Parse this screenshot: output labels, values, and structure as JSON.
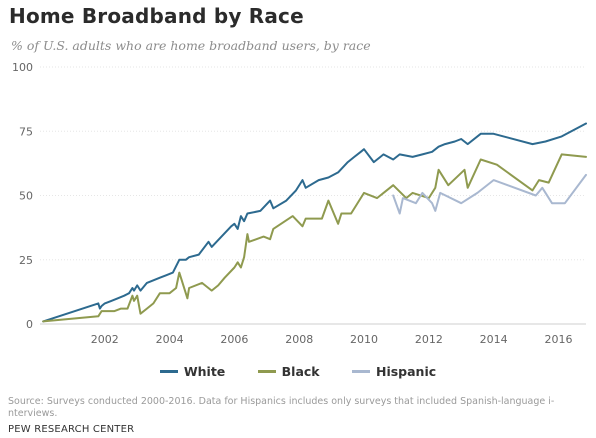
{
  "title": "Home Broadband by Race",
  "subtitle": "% of U.S. adults who are home broadband users, by race",
  "source": "Source: Surveys conducted 2000-2016. Data for Hispanics includes only surveys that included Spanish-language i-nterviews.",
  "org": "PEW RESEARCH CENTER",
  "chart_data": {
    "type": "line",
    "title": "Home Broadband by Race",
    "xlabel": "",
    "ylabel": "",
    "xlim": [
      2000.0,
      2016.85
    ],
    "ylim": [
      0,
      100
    ],
    "x_ticks": [
      2002,
      2004,
      2006,
      2008,
      2010,
      2012,
      2014,
      2016
    ],
    "y_ticks": [
      0,
      25,
      50,
      75,
      100
    ],
    "grid": "horizontal",
    "legend_position": "bottom",
    "series": [
      {
        "name": "White",
        "color": "#2d6a8f",
        "points": [
          [
            2000.1,
            1
          ],
          [
            2001.8,
            8
          ],
          [
            2001.85,
            6
          ],
          [
            2001.9,
            7
          ],
          [
            2002.0,
            8
          ],
          [
            2002.2,
            9
          ],
          [
            2002.4,
            10
          ],
          [
            2002.6,
            11
          ],
          [
            2002.75,
            12
          ],
          [
            2002.85,
            14
          ],
          [
            2002.9,
            13
          ],
          [
            2003.0,
            15
          ],
          [
            2003.1,
            13
          ],
          [
            2003.3,
            16
          ],
          [
            2003.5,
            17
          ],
          [
            2003.7,
            18
          ],
          [
            2003.9,
            19
          ],
          [
            2004.1,
            20
          ],
          [
            2004.3,
            25
          ],
          [
            2004.5,
            25
          ],
          [
            2004.6,
            26
          ],
          [
            2004.9,
            27
          ],
          [
            2005.2,
            32
          ],
          [
            2005.3,
            30
          ],
          [
            2005.6,
            34
          ],
          [
            2005.9,
            38
          ],
          [
            2006.0,
            39
          ],
          [
            2006.1,
            37
          ],
          [
            2006.2,
            42
          ],
          [
            2006.3,
            40
          ],
          [
            2006.4,
            43
          ],
          [
            2006.8,
            44
          ],
          [
            2007.1,
            48
          ],
          [
            2007.2,
            45
          ],
          [
            2007.6,
            48
          ],
          [
            2007.9,
            52
          ],
          [
            2008.1,
            56
          ],
          [
            2008.2,
            53
          ],
          [
            2008.6,
            56
          ],
          [
            2008.9,
            57
          ],
          [
            2009.2,
            59
          ],
          [
            2009.5,
            63
          ],
          [
            2009.7,
            65
          ],
          [
            2009.9,
            67
          ],
          [
            2010.0,
            68
          ],
          [
            2010.3,
            63
          ],
          [
            2010.6,
            66
          ],
          [
            2010.9,
            64
          ],
          [
            2011.1,
            66
          ],
          [
            2011.5,
            65
          ],
          [
            2011.8,
            66
          ],
          [
            2012.1,
            67
          ],
          [
            2012.3,
            69
          ],
          [
            2012.5,
            70
          ],
          [
            2012.8,
            71
          ],
          [
            2013.0,
            72
          ],
          [
            2013.2,
            70
          ],
          [
            2013.6,
            74
          ],
          [
            2014.0,
            74
          ],
          [
            2015.2,
            70
          ],
          [
            2015.6,
            71
          ],
          [
            2016.1,
            73
          ],
          [
            2016.85,
            78
          ]
        ]
      },
      {
        "name": "Black",
        "color": "#8f9a4f",
        "points": [
          [
            2000.1,
            1
          ],
          [
            2001.8,
            3
          ],
          [
            2001.9,
            5
          ],
          [
            2002.3,
            5
          ],
          [
            2002.5,
            6
          ],
          [
            2002.7,
            6
          ],
          [
            2002.85,
            11
          ],
          [
            2002.9,
            9
          ],
          [
            2003.0,
            11
          ],
          [
            2003.1,
            4
          ],
          [
            2003.3,
            6
          ],
          [
            2003.5,
            8
          ],
          [
            2003.7,
            12
          ],
          [
            2004.0,
            12
          ],
          [
            2004.2,
            14
          ],
          [
            2004.3,
            20
          ],
          [
            2004.55,
            10
          ],
          [
            2004.6,
            14
          ],
          [
            2005.0,
            16
          ],
          [
            2005.3,
            13
          ],
          [
            2005.5,
            15
          ],
          [
            2005.7,
            18
          ],
          [
            2006.0,
            22
          ],
          [
            2006.1,
            24
          ],
          [
            2006.2,
            22
          ],
          [
            2006.3,
            26
          ],
          [
            2006.4,
            35
          ],
          [
            2006.45,
            32
          ],
          [
            2006.9,
            34
          ],
          [
            2007.1,
            33
          ],
          [
            2007.2,
            37
          ],
          [
            2007.8,
            42
          ],
          [
            2008.1,
            38
          ],
          [
            2008.2,
            41
          ],
          [
            2008.7,
            41
          ],
          [
            2008.9,
            48
          ],
          [
            2009.2,
            39
          ],
          [
            2009.3,
            43
          ],
          [
            2009.6,
            43
          ],
          [
            2010.0,
            51
          ],
          [
            2010.4,
            49
          ],
          [
            2010.9,
            54
          ],
          [
            2011.3,
            49
          ],
          [
            2011.5,
            51
          ],
          [
            2012.0,
            49
          ],
          [
            2012.2,
            53
          ],
          [
            2012.3,
            60
          ],
          [
            2012.6,
            54
          ],
          [
            2013.1,
            60
          ],
          [
            2013.2,
            53
          ],
          [
            2013.6,
            64
          ],
          [
            2014.1,
            62
          ],
          [
            2015.2,
            52
          ],
          [
            2015.4,
            56
          ],
          [
            2015.7,
            55
          ],
          [
            2016.1,
            66
          ],
          [
            2016.85,
            65
          ]
        ]
      },
      {
        "name": "Hispanic",
        "color": "#a9b8d0",
        "points": [
          [
            2010.9,
            50
          ],
          [
            2011.1,
            43
          ],
          [
            2011.2,
            49
          ],
          [
            2011.6,
            47
          ],
          [
            2011.8,
            51
          ],
          [
            2012.1,
            47
          ],
          [
            2012.2,
            44
          ],
          [
            2012.35,
            51
          ],
          [
            2013.0,
            47
          ],
          [
            2013.5,
            51
          ],
          [
            2014.0,
            56
          ],
          [
            2015.3,
            50
          ],
          [
            2015.5,
            53
          ],
          [
            2015.8,
            47
          ],
          [
            2016.2,
            47
          ],
          [
            2016.85,
            58
          ]
        ]
      }
    ]
  }
}
